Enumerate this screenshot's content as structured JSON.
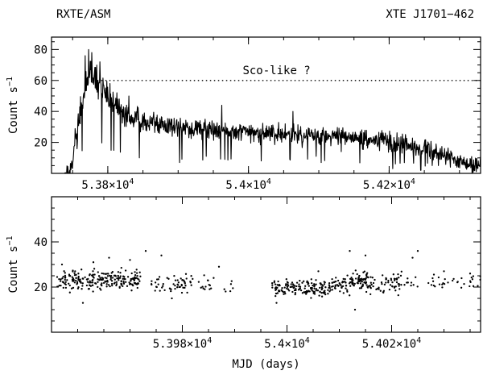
{
  "header": {
    "left": "RXTE/ASM",
    "right": "XTE J1701−462"
  },
  "chart_data": [
    {
      "type": "line",
      "title": "",
      "xlabel": "",
      "ylabel": "Count s",
      "ylabel_exponent": "−1",
      "xlim": [
        53720,
        54330
      ],
      "ylim": [
        0,
        88
      ],
      "xticks": [
        {
          "value": 53800,
          "mantissa": "5.38",
          "exponent": "4"
        },
        {
          "value": 54000,
          "mantissa": "5.4",
          "exponent": "4"
        },
        {
          "value": 54200,
          "mantissa": "5.42",
          "exponent": "4"
        }
      ],
      "yticks": [
        20,
        40,
        60,
        80
      ],
      "reference_line": {
        "y": 60,
        "x_from": 53785,
        "x_to": 54330,
        "style": "dotted"
      },
      "annotation": {
        "text": "Sco-like ?",
        "x": 54040,
        "y": 64
      },
      "profile": [
        [
          53720,
          0
        ],
        [
          53738,
          0
        ],
        [
          53746,
          2
        ],
        [
          53752,
          16
        ],
        [
          53758,
          32
        ],
        [
          53764,
          44
        ],
        [
          53770,
          58
        ],
        [
          53776,
          66
        ],
        [
          53780,
          63
        ],
        [
          53786,
          58
        ],
        [
          53792,
          54
        ],
        [
          53798,
          50
        ],
        [
          53806,
          45
        ],
        [
          53814,
          41
        ],
        [
          53824,
          38
        ],
        [
          53836,
          36
        ],
        [
          53850,
          34
        ],
        [
          53870,
          32
        ],
        [
          53890,
          31
        ],
        [
          53920,
          29
        ],
        [
          53950,
          28
        ],
        [
          53980,
          27
        ],
        [
          54000,
          26
        ],
        [
          54030,
          26
        ],
        [
          54060,
          25
        ],
        [
          54090,
          25
        ],
        [
          54120,
          24
        ],
        [
          54150,
          23
        ],
        [
          54180,
          22
        ],
        [
          54210,
          20
        ],
        [
          54240,
          17
        ],
        [
          54270,
          13
        ],
        [
          54300,
          8
        ],
        [
          54330,
          5
        ]
      ],
      "spikes": [
        [
          53768,
          76
        ],
        [
          53773,
          80
        ],
        [
          53777,
          78
        ],
        [
          53789,
          72
        ],
        [
          53794,
          57
        ],
        [
          53803,
          58
        ],
        [
          53813,
          52
        ],
        [
          53830,
          50
        ],
        [
          53845,
          10
        ],
        [
          53902,
          7
        ],
        [
          53940,
          11
        ],
        [
          53962,
          44
        ],
        [
          54018,
          8
        ],
        [
          54063,
          40
        ],
        [
          54096,
          11
        ],
        [
          54132,
          14
        ],
        [
          54205,
          3
        ],
        [
          54245,
          2
        ]
      ]
    },
    {
      "type": "scatter",
      "title": "",
      "xlabel": "MJD (days)",
      "ylabel": "Count s",
      "ylabel_exponent": "−1",
      "xlim": [
        53955,
        54037
      ],
      "ylim": [
        0,
        60
      ],
      "xticks": [
        {
          "value": 53980,
          "mantissa": "5.398",
          "exponent": "4"
        },
        {
          "value": 54000,
          "mantissa": "5.4",
          "exponent": "4"
        },
        {
          "value": 54020,
          "mantissa": "5.402",
          "exponent": "4"
        }
      ],
      "yticks": [
        20,
        40
      ],
      "segments": [
        {
          "x": [
            53956,
            53972
          ],
          "level": 23,
          "spread": 3.0,
          "count": 240
        },
        {
          "x": [
            53974,
            53982
          ],
          "level": 22,
          "spread": 3.0,
          "count": 55
        },
        {
          "x": [
            53983,
            53986
          ],
          "level": 22,
          "spread": 3.0,
          "count": 14
        },
        {
          "x": [
            53988,
            53990
          ],
          "level": 21,
          "spread": 3.0,
          "count": 6
        },
        {
          "x": [
            53997,
            54007
          ],
          "level": 19.5,
          "spread": 2.6,
          "count": 130
        },
        {
          "x": [
            54007,
            54012
          ],
          "level": 20.5,
          "spread": 2.8,
          "count": 60
        },
        {
          "x": [
            54012,
            54016
          ],
          "level": 22.5,
          "spread": 3.0,
          "count": 75
        },
        {
          "x": [
            54016,
            54022
          ],
          "level": 22,
          "spread": 3.0,
          "count": 55
        },
        {
          "x": [
            54022,
            54025
          ],
          "level": 22,
          "spread": 3.0,
          "count": 10
        },
        {
          "x": [
            54027,
            54037
          ],
          "level": 22,
          "spread": 2.6,
          "count": 32
        }
      ],
      "outliers": [
        [
          53957,
          30
        ],
        [
          53961,
          13
        ],
        [
          53963,
          31
        ],
        [
          53966,
          33
        ],
        [
          53970,
          32
        ],
        [
          53973,
          36
        ],
        [
          53976,
          34
        ],
        [
          53978,
          15
        ],
        [
          53987,
          29
        ],
        [
          53998,
          13
        ],
        [
          54006,
          27
        ],
        [
          54012,
          36
        ],
        [
          54013,
          10
        ],
        [
          54015,
          34
        ],
        [
          54024,
          33
        ],
        [
          54025,
          36
        ],
        [
          54030,
          27
        ],
        [
          54035,
          26
        ]
      ]
    }
  ]
}
